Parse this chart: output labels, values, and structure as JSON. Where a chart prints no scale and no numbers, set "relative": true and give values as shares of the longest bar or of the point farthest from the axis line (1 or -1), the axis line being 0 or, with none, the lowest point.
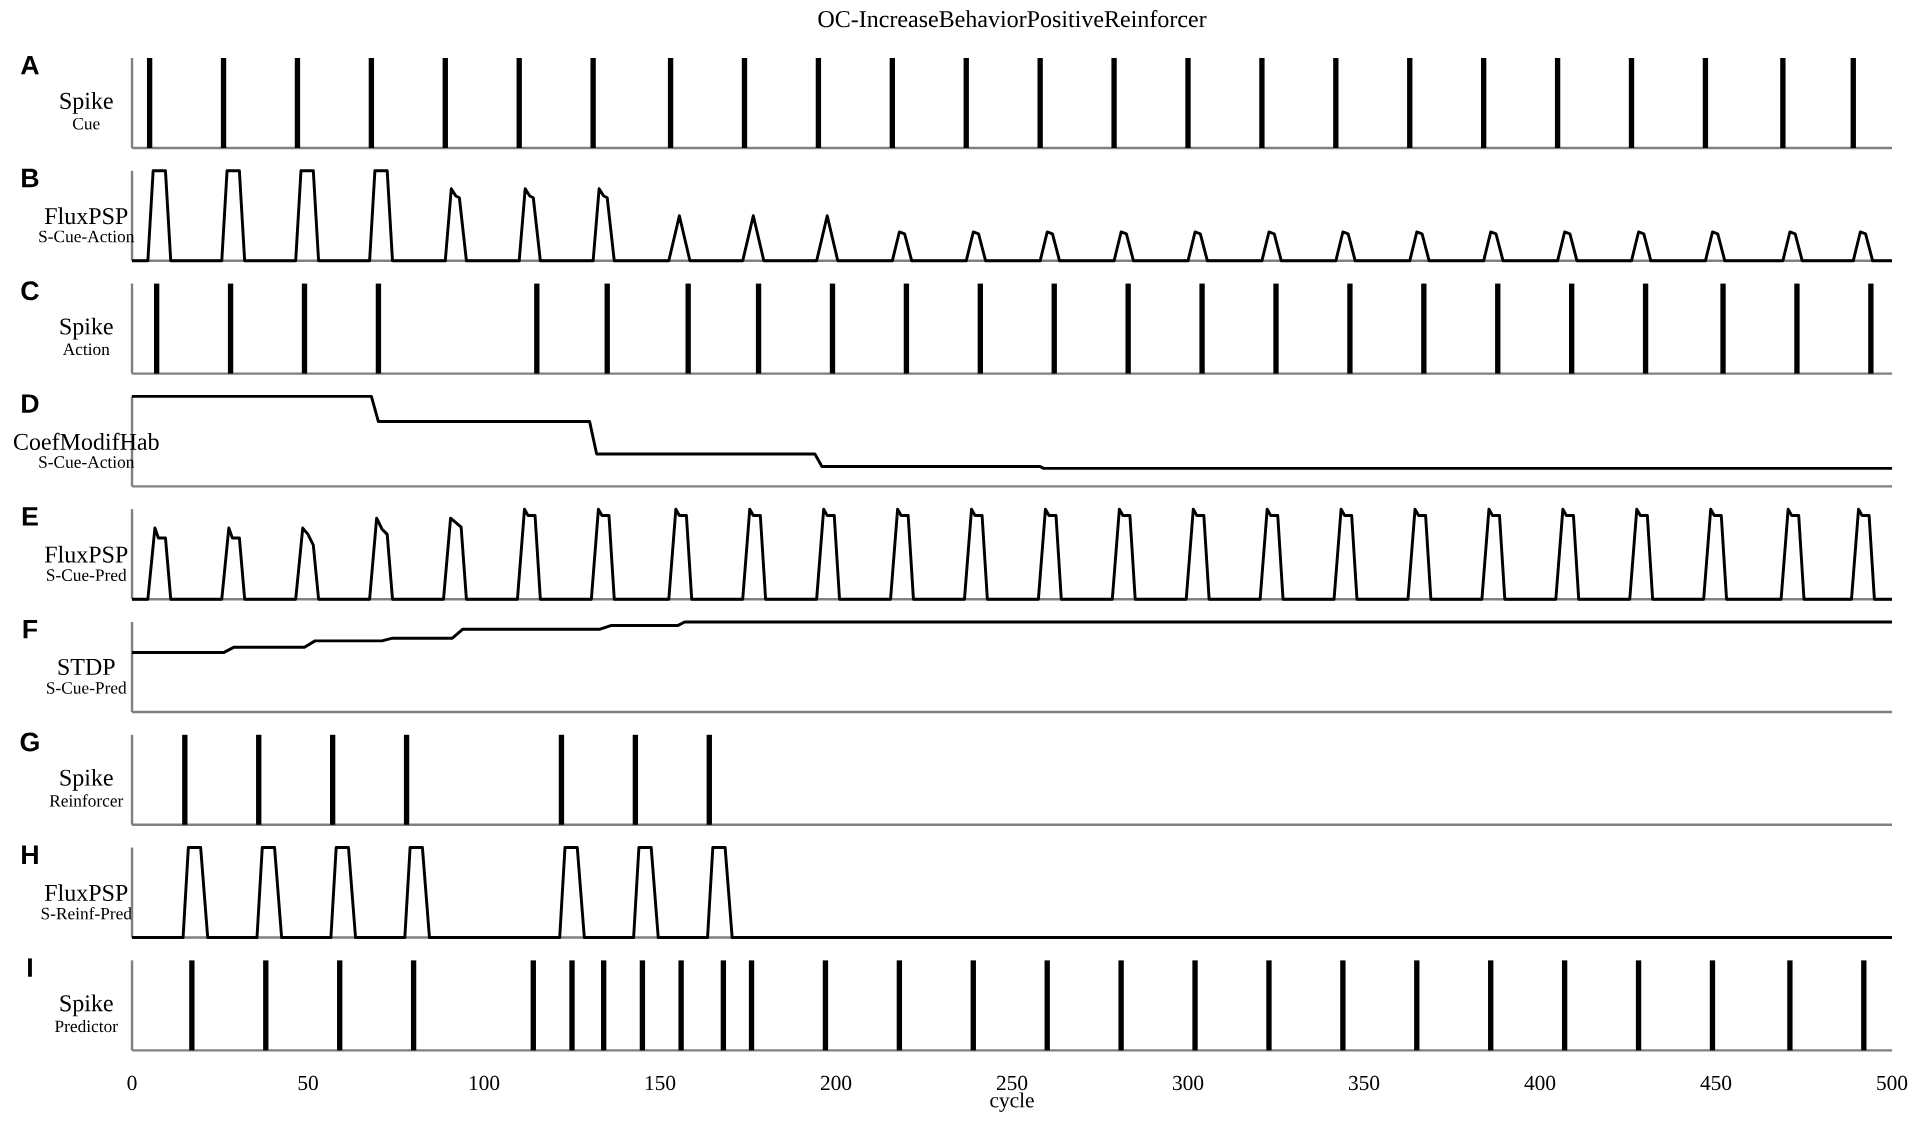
{
  "chart_data": [
    {
      "type": "bar",
      "title": "OC-IncreaseBehaviorPositiveReinforcer",
      "ylabel": "Spike",
      "annotations": [
        "A"
      ],
      "relative": true,
      "xlim": [
        0,
        500
      ],
      "tick_labels": false,
      "series": [
        {
          "name": "Cue",
          "color": "#000000",
          "x": [
            5,
            26,
            47,
            68,
            89,
            110,
            131,
            153,
            174,
            195,
            216,
            237,
            258,
            279,
            300,
            321,
            342,
            363,
            384,
            405,
            426,
            447,
            469,
            489
          ],
          "values": [
            1,
            1,
            1,
            1,
            1,
            1,
            1,
            1,
            1,
            1,
            1,
            1,
            1,
            1,
            1,
            1,
            1,
            1,
            1,
            1,
            1,
            1,
            1,
            1
          ]
        }
      ]
    },
    {
      "type": "line",
      "ylabel": "FluxPSP",
      "annotations": [
        "B"
      ],
      "relative": true,
      "xlim": [
        0,
        500
      ],
      "tick_labels": false,
      "series": [
        {
          "name": "S-Cue-Action",
          "color": "#000000",
          "x": [
            0,
            4.5,
            6,
            9.5,
            11,
            25.5,
            27,
            30.5,
            32,
            46.5,
            48,
            51.5,
            53,
            67.5,
            69,
            72.5,
            74,
            89,
            90.7,
            92,
            93,
            95,
            110,
            111.7,
            113,
            114,
            116,
            131,
            132.7,
            134,
            135,
            137,
            152.5,
            155.5,
            158.5,
            173.5,
            176.5,
            179.5,
            194.5,
            197.5,
            200.5,
            216,
            218,
            219.5,
            221.5,
            237,
            239,
            240.5,
            242.5,
            258,
            260,
            261.5,
            263.5,
            279,
            281,
            282.5,
            284.5,
            300,
            302,
            303.5,
            305.5,
            321,
            323,
            324.5,
            326.5,
            342,
            344,
            345.5,
            347.5,
            363,
            365,
            366.5,
            368.5,
            384,
            386,
            387.5,
            389.5,
            405,
            407,
            408.5,
            410.5,
            426,
            428,
            429.5,
            431.5,
            447,
            449,
            450.5,
            452.5,
            469,
            471,
            472.5,
            474.5,
            489,
            491,
            492.5,
            494.5,
            500
          ],
          "values": [
            0,
            0,
            1,
            1,
            0,
            0,
            1,
            1,
            0,
            0,
            1,
            1,
            0,
            0,
            1,
            1,
            0,
            0,
            0.8,
            0.72,
            0.7,
            0,
            0,
            0.8,
            0.72,
            0.7,
            0,
            0,
            0.8,
            0.72,
            0.7,
            0,
            0,
            0.5,
            0,
            0,
            0.5,
            0,
            0,
            0.5,
            0,
            0,
            0.32,
            0.3,
            0,
            0,
            0.32,
            0.3,
            0,
            0,
            0.32,
            0.3,
            0,
            0,
            0.32,
            0.3,
            0,
            0,
            0.32,
            0.3,
            0,
            0,
            0.32,
            0.3,
            0,
            0,
            0.32,
            0.3,
            0,
            0,
            0.32,
            0.3,
            0,
            0,
            0.32,
            0.3,
            0,
            0,
            0.32,
            0.3,
            0,
            0,
            0.32,
            0.3,
            0,
            0,
            0.32,
            0.3,
            0,
            0,
            0.32,
            0.3,
            0,
            0,
            0.32,
            0.3,
            0,
            0
          ]
        }
      ]
    },
    {
      "type": "bar",
      "ylabel": "Spike",
      "annotations": [
        "C"
      ],
      "relative": true,
      "xlim": [
        0,
        500
      ],
      "tick_labels": false,
      "series": [
        {
          "name": "Action",
          "color": "#000000",
          "x": [
            7,
            28,
            49,
            70,
            115,
            135,
            158,
            178,
            199,
            220,
            241,
            262,
            283,
            304,
            325,
            346,
            367,
            388,
            409,
            430,
            452,
            473,
            494
          ],
          "values": [
            1,
            1,
            1,
            1,
            1,
            1,
            1,
            1,
            1,
            1,
            1,
            1,
            1,
            1,
            1,
            1,
            1,
            1,
            1,
            1,
            1,
            1,
            1
          ]
        }
      ]
    },
    {
      "type": "line",
      "ylabel": "CoefModifHab",
      "annotations": [
        "D"
      ],
      "relative": true,
      "xlim": [
        0,
        500
      ],
      "tick_labels": false,
      "series": [
        {
          "name": "S-Cue-Action",
          "color": "#000000",
          "x": [
            0,
            68,
            70,
            130,
            132,
            194,
            196,
            258,
            259,
            500
          ],
          "values": [
            1,
            1,
            0.72,
            0.72,
            0.36,
            0.36,
            0.22,
            0.22,
            0.2,
            0.2
          ]
        }
      ]
    },
    {
      "type": "line",
      "ylabel": "FluxPSP",
      "annotations": [
        "E"
      ],
      "relative": true,
      "xlim": [
        0,
        500
      ],
      "tick_labels": false,
      "series": [
        {
          "name": "S-Cue-Pred",
          "color": "#000000",
          "x": [
            0,
            4.5,
            6.5,
            7.5,
            9.5,
            11,
            25.5,
            27.5,
            28.5,
            30.5,
            32,
            46.5,
            48.5,
            50,
            51.5,
            53,
            67.5,
            69.5,
            71,
            72.5,
            74,
            88.5,
            90.5,
            92,
            93.5,
            95,
            109.5,
            111.5,
            112.5,
            114.5,
            116,
            130.5,
            132.5,
            133.5,
            135.5,
            137,
            152.5,
            154.5,
            155.5,
            157.5,
            159,
            173.5,
            175.5,
            176.5,
            178.5,
            180,
            194.5,
            196.5,
            197.5,
            199.5,
            201,
            215.5,
            217.5,
            218.5,
            220.5,
            222,
            236.5,
            238.5,
            239.5,
            241.5,
            243,
            257.5,
            259.5,
            260.5,
            262.5,
            264,
            278.5,
            280.5,
            281.5,
            283.5,
            285,
            299.5,
            301.5,
            302.5,
            304.5,
            306,
            320.5,
            322.5,
            323.5,
            325.5,
            327,
            341.5,
            343.5,
            344.5,
            346.5,
            348,
            362.5,
            364.5,
            365.5,
            367.5,
            369,
            383.5,
            385.5,
            386.5,
            388.5,
            390,
            404.5,
            406.5,
            407.5,
            409.5,
            411,
            425.5,
            427.5,
            428.5,
            430.5,
            432,
            446.5,
            448.5,
            449.5,
            451.5,
            453,
            468.5,
            470.5,
            471.5,
            473.5,
            475,
            488.5,
            490.5,
            491.5,
            493.5,
            495,
            500
          ],
          "values": [
            0,
            0,
            0.79,
            0.68,
            0.68,
            0,
            0,
            0.79,
            0.68,
            0.68,
            0,
            0,
            0.79,
            0.72,
            0.6,
            0,
            0,
            0.9,
            0.78,
            0.72,
            0,
            0,
            0.9,
            0.85,
            0.8,
            0,
            0,
            1,
            0.93,
            0.93,
            0,
            0,
            1,
            0.93,
            0.93,
            0,
            0,
            1,
            0.93,
            0.93,
            0,
            0,
            1,
            0.93,
            0.93,
            0,
            0,
            1,
            0.93,
            0.93,
            0,
            0,
            1,
            0.93,
            0.93,
            0,
            0,
            1,
            0.93,
            0.93,
            0,
            0,
            1,
            0.93,
            0.93,
            0,
            0,
            1,
            0.93,
            0.93,
            0,
            0,
            1,
            0.93,
            0.93,
            0,
            0,
            1,
            0.93,
            0.93,
            0,
            0,
            1,
            0.93,
            0.93,
            0,
            0,
            1,
            0.93,
            0.93,
            0,
            0,
            1,
            0.93,
            0.93,
            0,
            0,
            1,
            0.93,
            0.93,
            0,
            0,
            1,
            0.93,
            0.93,
            0,
            0,
            1,
            0.93,
            0.93,
            0,
            0,
            1,
            0.93,
            0.93,
            0,
            0,
            1,
            0.93,
            0.93,
            0,
            0
          ]
        }
      ]
    },
    {
      "type": "line",
      "ylabel": "STDP",
      "annotations": [
        "F"
      ],
      "relative": true,
      "xlim": [
        0,
        500
      ],
      "tick_labels": false,
      "series": [
        {
          "name": "S-Cue-Pred",
          "color": "#000000",
          "x": [
            0,
            26,
            29,
            49,
            52,
            71,
            74,
            91,
            94,
            133,
            136,
            155,
            157,
            500
          ],
          "values": [
            0.66,
            0.66,
            0.72,
            0.72,
            0.79,
            0.79,
            0.82,
            0.82,
            0.92,
            0.92,
            0.96,
            0.96,
            1,
            1
          ]
        }
      ]
    },
    {
      "type": "bar",
      "ylabel": "Spike",
      "annotations": [
        "G"
      ],
      "relative": true,
      "xlim": [
        0,
        500
      ],
      "tick_labels": false,
      "series": [
        {
          "name": "Reinforcer",
          "color": "#000000",
          "x": [
            15,
            36,
            57,
            78,
            122,
            143,
            164
          ],
          "values": [
            1,
            1,
            1,
            1,
            1,
            1,
            1
          ]
        }
      ]
    },
    {
      "type": "line",
      "ylabel": "FluxPSP",
      "annotations": [
        "H"
      ],
      "relative": true,
      "xlim": [
        0,
        500
      ],
      "tick_labels": false,
      "series": [
        {
          "name": "S-Reinf-Pred",
          "color": "#000000",
          "x": [
            0,
            14.5,
            16,
            19.5,
            21.5,
            35.5,
            37,
            40.5,
            42.5,
            56.5,
            58,
            61.5,
            63.5,
            77.5,
            79,
            82.5,
            84.5,
            121.5,
            123,
            126.5,
            128.5,
            142.5,
            144,
            147.5,
            149.5,
            163.5,
            165,
            168.5,
            170.5,
            500
          ],
          "values": [
            0,
            0,
            1,
            1,
            0,
            0,
            1,
            1,
            0,
            0,
            1,
            1,
            0,
            0,
            1,
            1,
            0,
            0,
            1,
            1,
            0,
            0,
            1,
            1,
            0,
            0,
            1,
            1,
            0,
            0
          ]
        }
      ]
    },
    {
      "type": "bar",
      "ylabel": "Spike",
      "xlabel": "cycle",
      "annotations": [
        "I"
      ],
      "relative": true,
      "xlim": [
        0,
        500
      ],
      "xticks": [
        0,
        50,
        100,
        150,
        200,
        250,
        300,
        350,
        400,
        450,
        500
      ],
      "tick_labels": "x",
      "series": [
        {
          "name": "Predictor",
          "color": "#000000",
          "x": [
            17,
            38,
            59,
            80,
            114,
            125,
            134,
            145,
            156,
            168,
            176,
            197,
            218,
            239,
            260,
            281,
            302,
            323,
            344,
            365,
            386,
            407,
            428,
            449,
            471,
            492
          ],
          "values": [
            1,
            1,
            1,
            1,
            1,
            1,
            1,
            1,
            1,
            1,
            1,
            1,
            1,
            1,
            1,
            1,
            1,
            1,
            1,
            1,
            1,
            1,
            1,
            1,
            1,
            1
          ]
        }
      ]
    }
  ]
}
